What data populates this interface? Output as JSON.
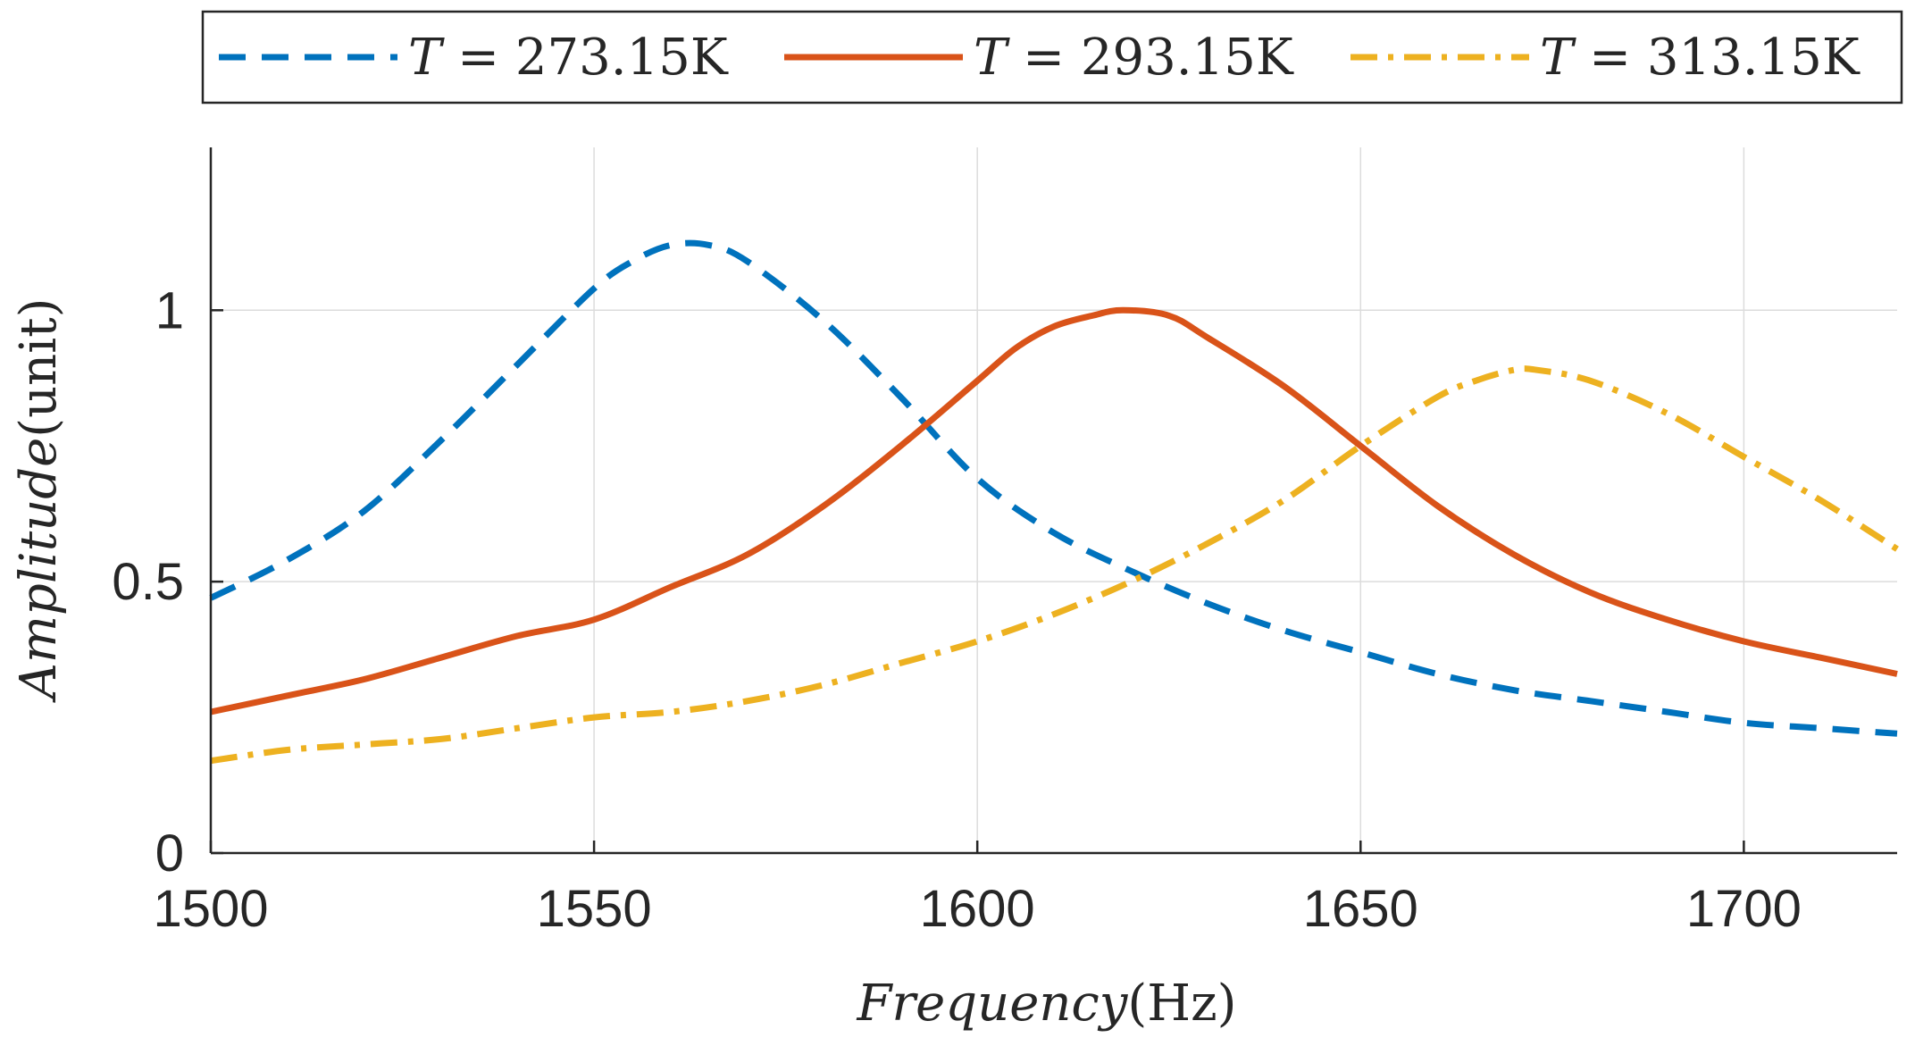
{
  "chart_data": {
    "type": "line",
    "title": "",
    "xlabel": "Frequency(Hz)",
    "xlabel_parts": {
      "variable": "Frequency",
      "unit": "(Hz)"
    },
    "ylabel": "Amplitude(unit)",
    "ylabel_parts": {
      "variable": "Amplitude",
      "unit": "(unit)"
    },
    "xlim": [
      1500,
      1720
    ],
    "ylim": [
      0,
      1.3
    ],
    "xticks": [
      1500,
      1550,
      1600,
      1650,
      1700
    ],
    "xtick_labels": [
      "1500",
      "1550",
      "1600",
      "1650",
      "1700"
    ],
    "yticks": [
      0,
      0.5,
      1
    ],
    "ytick_labels": [
      "0",
      "0.5",
      "1"
    ],
    "grid": true,
    "legend_position": "top-outside-horizontal",
    "series": [
      {
        "name": "T = 273.15K",
        "legend_var": "T",
        "legend_eq": "=",
        "legend_value": "273.15K",
        "color": "#0072BD",
        "style": "dashed",
        "x": [
          1500,
          1510,
          1520,
          1530,
          1540,
          1550,
          1555,
          1560,
          1565,
          1570,
          1580,
          1590,
          1600,
          1610,
          1620,
          1630,
          1640,
          1650,
          1660,
          1670,
          1680,
          1690,
          1700,
          1710,
          1720
        ],
        "y": [
          0.47,
          0.54,
          0.63,
          0.76,
          0.9,
          1.04,
          1.09,
          1.12,
          1.12,
          1.09,
          0.98,
          0.84,
          0.69,
          0.59,
          0.52,
          0.46,
          0.41,
          0.37,
          0.33,
          0.3,
          0.28,
          0.26,
          0.24,
          0.23,
          0.22
        ]
      },
      {
        "name": "T = 293.15K",
        "legend_var": "T",
        "legend_eq": "=",
        "legend_value": "293.15K",
        "color": "#D95319",
        "style": "solid",
        "x": [
          1500,
          1510,
          1520,
          1530,
          1540,
          1550,
          1560,
          1570,
          1580,
          1590,
          1600,
          1605,
          1610,
          1615,
          1619,
          1625,
          1630,
          1640,
          1650,
          1660,
          1670,
          1680,
          1690,
          1700,
          1710,
          1720
        ],
        "y": [
          0.26,
          0.29,
          0.32,
          0.36,
          0.4,
          0.43,
          0.49,
          0.55,
          0.64,
          0.75,
          0.87,
          0.93,
          0.97,
          0.99,
          1.0,
          0.99,
          0.95,
          0.86,
          0.75,
          0.64,
          0.55,
          0.48,
          0.43,
          0.39,
          0.36,
          0.33
        ]
      },
      {
        "name": "T = 313.15K",
        "legend_var": "T",
        "legend_eq": "=",
        "legend_value": "313.15K",
        "color": "#EDB120",
        "style": "dashdot",
        "x": [
          1500,
          1510,
          1520,
          1530,
          1540,
          1550,
          1560,
          1570,
          1580,
          1590,
          1600,
          1610,
          1620,
          1630,
          1640,
          1650,
          1660,
          1665,
          1670,
          1673,
          1680,
          1690,
          1700,
          1710,
          1720
        ],
        "y": [
          0.17,
          0.19,
          0.2,
          0.21,
          0.23,
          0.25,
          0.26,
          0.28,
          0.31,
          0.35,
          0.39,
          0.44,
          0.5,
          0.57,
          0.65,
          0.75,
          0.84,
          0.87,
          0.89,
          0.89,
          0.87,
          0.81,
          0.73,
          0.65,
          0.56
        ]
      }
    ]
  }
}
